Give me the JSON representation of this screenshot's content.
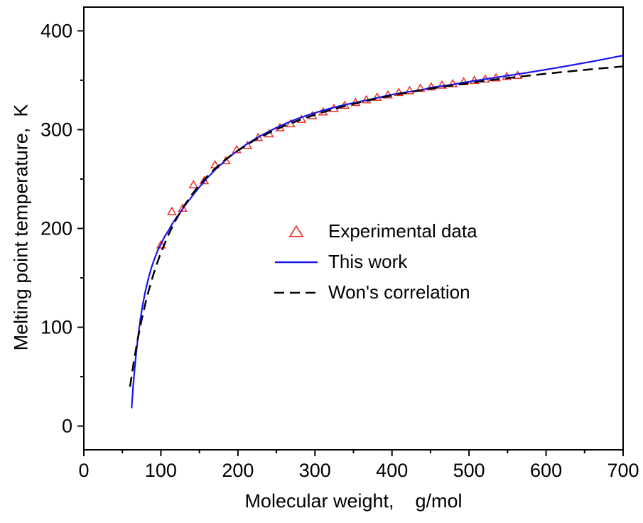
{
  "chart_data": {
    "type": "line+scatter",
    "title": "",
    "xlabel": "Molecular weight,    g/mol",
    "ylabel": "Melting point temperature,  K",
    "xlim": [
      0,
      700
    ],
    "ylim": [
      -24,
      424
    ],
    "x_ticks": [
      0,
      100,
      200,
      300,
      400,
      500,
      600,
      700
    ],
    "y_ticks": [
      0,
      100,
      200,
      300,
      400
    ],
    "x_minor_step": 50,
    "y_minor_step": 50,
    "grid": false,
    "frame": "box",
    "background": "#ffffff",
    "axis_color": "#000000",
    "legend": {
      "position": "inside-center-right",
      "border": false
    },
    "series": [
      {
        "name": "Experimental data",
        "type": "scatter",
        "marker": "open-triangle",
        "color": "#ee2e24",
        "x": [
          100.2,
          114.2,
          128.3,
          142.3,
          156.3,
          170.3,
          184.4,
          198.4,
          212.4,
          226.4,
          240.5,
          254.5,
          268.5,
          282.6,
          296.6,
          310.6,
          324.6,
          338.7,
          352.7,
          366.7,
          380.7,
          394.8,
          408.8,
          422.8,
          436.9,
          450.9,
          464.9,
          478.9,
          493.0,
          507.0,
          521.0,
          535.0,
          549.1,
          563.1
        ],
        "y": [
          182.6,
          216.4,
          219.7,
          243.5,
          247.6,
          263.6,
          267.8,
          279.0,
          283.1,
          291.3,
          295.1,
          301.3,
          305.2,
          309.6,
          313.4,
          317.2,
          320.7,
          323.8,
          326.7,
          329.5,
          332.0,
          334.4,
          336.9,
          338.7,
          341.1,
          342.5,
          344.3,
          345.8,
          347.7,
          349.1,
          350.4,
          351.7,
          353.0,
          354.2
        ]
      },
      {
        "name": "This work",
        "type": "line",
        "style": "solid",
        "color": "#1616f0",
        "width": 2.2,
        "x": [
          62,
          64,
          66,
          68,
          70,
          73,
          76,
          80,
          84,
          88,
          92,
          96,
          100,
          105,
          110,
          115,
          120,
          125,
          130,
          135,
          140,
          145,
          150,
          155,
          160,
          165,
          170,
          175,
          180,
          185,
          190,
          195,
          200,
          210,
          220,
          230,
          240,
          250,
          260,
          270,
          280,
          290,
          300,
          310,
          320,
          330,
          340,
          350,
          360,
          370,
          380,
          390,
          400,
          410,
          420,
          430,
          440,
          450,
          460,
          470,
          480,
          490,
          500,
          510,
          520,
          530,
          540,
          550,
          560,
          570,
          580,
          590,
          600,
          610,
          620,
          630,
          640,
          650,
          660,
          670,
          680,
          690,
          700
        ],
        "y": [
          18,
          40,
          58,
          74,
          88,
          106,
          121,
          137,
          150,
          161,
          170,
          178,
          184,
          192,
          198,
          205,
          211,
          216,
          222,
          227,
          232,
          237,
          242,
          246,
          251,
          255,
          259,
          263,
          266,
          270,
          273,
          276,
          279,
          284.5,
          289.5,
          294,
          298,
          302,
          305.5,
          308.8,
          311.8,
          314.5,
          317,
          319.3,
          321.5,
          323.5,
          325.3,
          327,
          328.7,
          330.3,
          332,
          333.8,
          335.5,
          336.8,
          338,
          339.2,
          340.4,
          342.5,
          343.6,
          344.7,
          345.8,
          347.3,
          348.5,
          349.8,
          351,
          352.2,
          353.4,
          354.6,
          355.8,
          357,
          358.2,
          359.5,
          360.8,
          362.1,
          363.4,
          364.8,
          366.2,
          367.6,
          369,
          370.5,
          372,
          373.5,
          375
        ]
      },
      {
        "name": "Won's correlation",
        "type": "line",
        "style": "dashed",
        "color": "#000000",
        "width": 2.5,
        "dash": "14 8",
        "x": [
          60,
          65,
          70,
          75,
          80,
          85,
          90,
          95,
          100,
          110,
          120,
          130,
          140,
          150,
          160,
          170,
          180,
          190,
          200,
          220,
          240,
          260,
          280,
          300,
          320,
          340,
          360,
          380,
          400,
          420,
          440,
          460,
          480,
          500,
          520,
          540,
          560,
          580,
          600,
          620,
          640,
          660,
          680,
          700
        ],
        "y": [
          39.9,
          65.9,
          88.2,
          107.5,
          124.4,
          139.5,
          152.7,
          164.6,
          175.4,
          194.0,
          209.5,
          222.7,
          234.1,
          243.9,
          252.6,
          260.3,
          267.1,
          273.3,
          278.9,
          288.6,
          296.7,
          303.7,
          309.8,
          315.1,
          319.8,
          324.1,
          327.9,
          331.4,
          334.5,
          337.5,
          340.2,
          342.7,
          345.0,
          347.2,
          349.3,
          351.3,
          353.1,
          354.9,
          356.6,
          358.2,
          359.7,
          361.2,
          362.6,
          364.0
        ]
      }
    ]
  }
}
